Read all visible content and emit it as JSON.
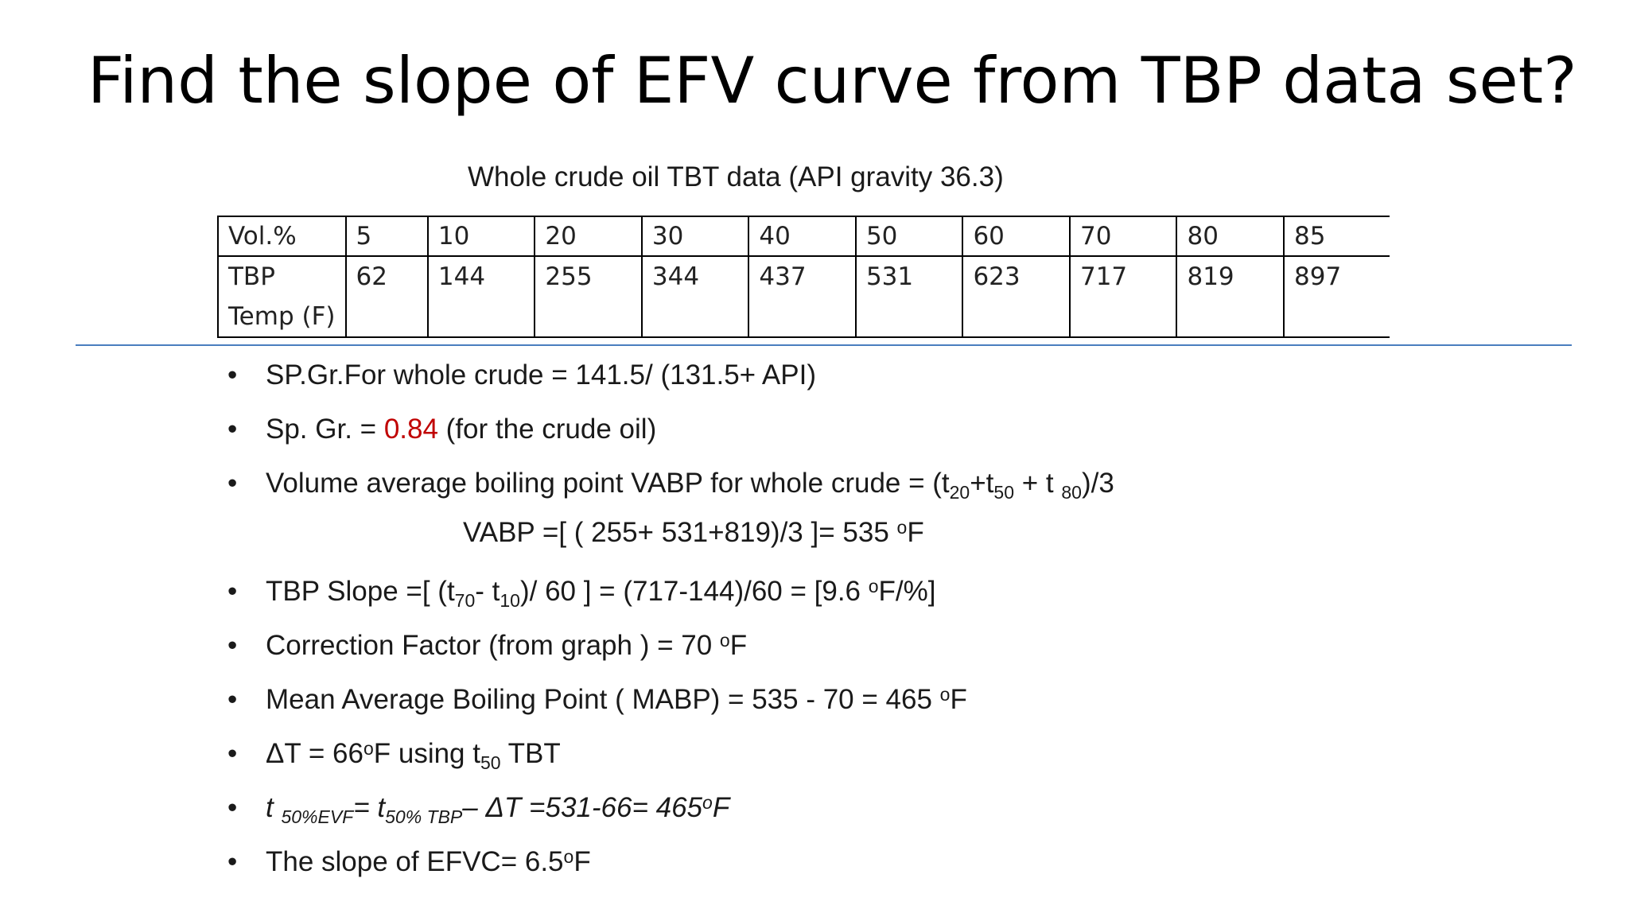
{
  "title": "Find the slope of EFV curve from TBP data set?",
  "table_caption": "Whole crude oil TBT data (API gravity 36.3)",
  "table": {
    "row1_header": "Vol.%",
    "row2_header_line1": "TBP",
    "row2_header_line2": "Temp (F)",
    "vol": [
      "5",
      "10",
      "20",
      "30",
      "40",
      "50",
      "60",
      "70",
      "80",
      "85"
    ],
    "temp": [
      "62",
      "144",
      "255",
      "344",
      "437",
      "531",
      "623",
      "717",
      "819",
      "897"
    ]
  },
  "bullet_char": "•",
  "bullets": {
    "b1": "SP.Gr.For whole crude = 141.5/ (131.5+ API)",
    "b2": {
      "pre": "Sp. Gr. = ",
      "value": "0.84",
      "post": " (for the crude oil)"
    },
    "b3": {
      "pre": "Volume average boiling point VABP for whole crude = (t",
      "s1": "20",
      "mid1": "+t",
      "s2": "50",
      "mid2": " + t ",
      "s3": "80",
      "post": ")/3"
    },
    "vabp": {
      "pre": "VABP =[ ( 255+ 531+819)/3 ]= 535 ",
      "sup": "o",
      "post": "F"
    },
    "b4": {
      "pre": "TBP Slope =[ (t",
      "s1": "70",
      "mid1": "- t",
      "s2": "10",
      "mid2": ")/ 60 ] = (717-144)/60 = [9.6 ",
      "sup": "o",
      "post": "F/%]"
    },
    "b5": {
      "pre": "Correction Factor (from graph ) = 70 ",
      "sup": "o",
      "post": "F"
    },
    "b6": {
      "pre": "Mean Average Boiling Point ( MABP) = 535 - 70 = 465 ",
      "sup": "o",
      "post": "F"
    },
    "b7": {
      "pre": "ΔT = 66",
      "sup": "o",
      "mid": "F using t",
      "sub": "50",
      "post": " TBT"
    },
    "b8": {
      "t1": "t ",
      "s1": "50%EVF",
      "eq": "= t",
      "s2": "50% TBP",
      "post": "– ΔT =531-66= 465",
      "sup": "o",
      "end": "F"
    },
    "b9": {
      "pre": "The slope of EFVC= 6.5",
      "sup": "o",
      "post": "F"
    }
  }
}
